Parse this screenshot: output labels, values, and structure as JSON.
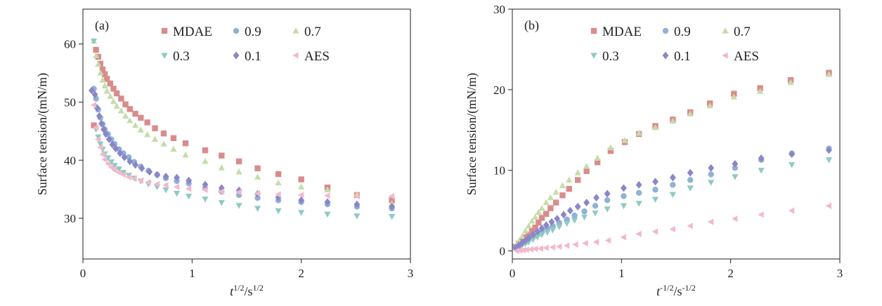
{
  "chart_data": [
    {
      "type": "scatter",
      "panel_label": "(a)",
      "xlabel": "t",
      "xlabel_sup": "1/2",
      "xlabel_rest": "/s",
      "xlabel_rest_sup": "1/2",
      "ylabel": "Surface tension/(mN/m)",
      "xlim": [
        0,
        3
      ],
      "ylim": [
        23,
        66
      ],
      "xticks": [
        0,
        1,
        2,
        3
      ],
      "yticks": [
        30,
        40,
        50,
        60
      ],
      "xtick_labels": [
        "0",
        "1",
        "2",
        "3"
      ],
      "ytick_labels": [
        "30",
        "40",
        "50",
        "60"
      ],
      "grid": false,
      "legend_position": "top, inside, 3 columns",
      "series": [
        {
          "name": "MDAE",
          "marker": "square",
          "color": "#d98c8c",
          "x": [
            0.1,
            0.12,
            0.14,
            0.16,
            0.18,
            0.2,
            0.22,
            0.25,
            0.28,
            0.31,
            0.35,
            0.39,
            0.43,
            0.48,
            0.53,
            0.59,
            0.66,
            0.74,
            0.83,
            0.94,
            1.12,
            1.27,
            1.43,
            1.6,
            1.79,
            2.0,
            2.24,
            2.51,
            2.83
          ],
          "y": [
            46.0,
            59.0,
            57.8,
            56.6,
            55.6,
            54.8,
            54.0,
            53.2,
            52.3,
            51.5,
            50.6,
            49.6,
            48.8,
            48.0,
            47.3,
            46.5,
            45.5,
            44.6,
            43.8,
            42.9,
            41.7,
            40.8,
            39.8,
            38.6,
            37.6,
            36.7,
            35.3,
            34.0,
            33.1
          ]
        },
        {
          "name": "0.9",
          "marker": "circle",
          "color": "#8fb2d6",
          "x": [
            0.1,
            0.12,
            0.14,
            0.16,
            0.18,
            0.2,
            0.23,
            0.26,
            0.29,
            0.33,
            0.37,
            0.42,
            0.47,
            0.53,
            0.6,
            0.68,
            0.76,
            0.86,
            0.97,
            1.12,
            1.27,
            1.43,
            1.6,
            1.79,
            2.0,
            2.24,
            2.51,
            2.83
          ],
          "y": [
            52.3,
            50.6,
            48.7,
            47.3,
            46.2,
            45.3,
            44.5,
            43.6,
            42.8,
            41.9,
            41.2,
            40.5,
            39.7,
            38.9,
            38.2,
            37.5,
            36.9,
            36.4,
            36.0,
            35.2,
            34.6,
            34.0,
            33.5,
            33.1,
            32.8,
            32.4,
            32.0,
            31.7
          ]
        },
        {
          "name": "0.7",
          "marker": "triangle-up",
          "color": "#c6dcaa",
          "x": [
            0.1,
            0.12,
            0.14,
            0.16,
            0.18,
            0.2,
            0.22,
            0.25,
            0.28,
            0.31,
            0.35,
            0.39,
            0.43,
            0.48,
            0.53,
            0.59,
            0.66,
            0.74,
            0.83,
            0.94,
            1.12,
            1.27,
            1.43,
            1.6,
            1.79,
            2.0,
            2.24,
            2.51,
            2.83
          ],
          "y": [
            60.5,
            58.0,
            56.5,
            55.0,
            53.8,
            52.8,
            51.9,
            51.0,
            50.1,
            49.3,
            48.5,
            47.6,
            46.8,
            46.0,
            45.2,
            44.4,
            43.6,
            42.8,
            41.9,
            40.9,
            39.8,
            38.7,
            38.0,
            37.1,
            36.1,
            35.4,
            34.9,
            34.1,
            32.5
          ]
        },
        {
          "name": "0.3",
          "marker": "triangle-down",
          "color": "#8ecac4",
          "x": [
            0.1,
            0.12,
            0.14,
            0.16,
            0.18,
            0.2,
            0.23,
            0.26,
            0.29,
            0.33,
            0.37,
            0.42,
            0.47,
            0.53,
            0.6,
            0.68,
            0.76,
            0.86,
            0.97,
            1.12,
            1.27,
            1.43,
            1.6,
            1.79,
            2.0,
            2.24,
            2.51,
            2.83
          ],
          "y": [
            60.5,
            45.3,
            44.0,
            42.8,
            41.9,
            41.1,
            40.4,
            39.7,
            39.1,
            38.5,
            37.9,
            37.4,
            36.9,
            36.4,
            35.9,
            35.4,
            34.9,
            34.3,
            33.8,
            33.3,
            32.7,
            32.2,
            31.7,
            31.3,
            31.0,
            30.7,
            30.4,
            30.3
          ]
        },
        {
          "name": "0.1",
          "marker": "diamond",
          "color": "#8a86c8",
          "x": [
            0.08,
            0.11,
            0.13,
            0.15,
            0.17,
            0.19,
            0.21,
            0.24,
            0.27,
            0.3,
            0.34,
            0.38,
            0.43,
            0.48,
            0.54,
            0.61,
            0.68,
            0.76,
            0.86,
            0.97,
            1.12,
            1.27,
            1.43,
            1.6,
            1.79,
            2.0,
            2.24,
            2.51,
            2.83
          ],
          "y": [
            52.0,
            51.3,
            49.0,
            47.6,
            46.3,
            45.3,
            44.5,
            43.6,
            42.7,
            42.0,
            41.2,
            40.5,
            39.8,
            39.2,
            38.6,
            38.0,
            37.5,
            37.2,
            37.0,
            36.5,
            35.8,
            35.2,
            34.8,
            34.2,
            33.6,
            33.1,
            32.8,
            32.4,
            32.0
          ]
        },
        {
          "name": "AES",
          "marker": "triangle-left",
          "color": "#f2b8cc",
          "x": [
            0.1,
            0.12,
            0.14,
            0.16,
            0.18,
            0.2,
            0.23,
            0.26,
            0.29,
            0.33,
            0.37,
            0.42,
            0.47,
            0.53,
            0.6,
            0.68,
            0.76,
            0.86,
            0.97,
            1.12,
            1.27,
            1.43,
            1.6,
            1.79,
            2.0,
            2.24,
            2.51,
            2.83
          ],
          "y": [
            49.5,
            45.6,
            43.6,
            42.2,
            41.0,
            40.1,
            39.4,
            38.8,
            38.3,
            37.9,
            37.5,
            37.1,
            36.8,
            36.5,
            36.2,
            35.9,
            35.7,
            35.4,
            35.1,
            34.9,
            34.6,
            34.5,
            34.3,
            34.1,
            34.0,
            33.9,
            33.8,
            33.8
          ]
        }
      ]
    },
    {
      "type": "scatter",
      "panel_label": "(b)",
      "xlabel": "t",
      "xlabel_sup": "-1/2",
      "xlabel_rest": "/s",
      "xlabel_rest_sup": "-1/2",
      "ylabel": "Surface tension/(mN/m)",
      "xlim": [
        0,
        3
      ],
      "ylim": [
        -1,
        30
      ],
      "xticks": [
        0,
        1,
        2,
        3
      ],
      "yticks": [
        0,
        10,
        20,
        30
      ],
      "xtick_labels": [
        "0",
        "1",
        "2",
        "3"
      ],
      "ytick_labels": [
        "0",
        "10",
        "20",
        "30"
      ],
      "grid": false,
      "legend_position": "top, inside, 3 columns",
      "series": [
        {
          "name": "MDAE",
          "marker": "square",
          "color": "#d98c8c",
          "x": [
            0.03,
            0.06,
            0.09,
            0.12,
            0.15,
            0.18,
            0.21,
            0.24,
            0.27,
            0.31,
            0.35,
            0.4,
            0.46,
            0.52,
            0.6,
            0.68,
            0.78,
            0.9,
            1.03,
            1.16,
            1.31,
            1.47,
            1.63,
            1.81,
            2.03,
            2.27,
            2.55,
            2.9
          ],
          "y": [
            0.5,
            0.9,
            1.3,
            1.7,
            2.0,
            2.5,
            2.9,
            3.5,
            4.1,
            4.6,
            5.3,
            6.0,
            6.9,
            7.7,
            8.8,
            9.9,
            11.0,
            12.4,
            13.5,
            14.5,
            15.5,
            16.3,
            17.2,
            18.3,
            19.5,
            20.2,
            21.2,
            22.1
          ]
        },
        {
          "name": "0.9",
          "marker": "circle",
          "color": "#8fb2d6",
          "x": [
            0.03,
            0.06,
            0.09,
            0.12,
            0.15,
            0.19,
            0.23,
            0.27,
            0.32,
            0.37,
            0.43,
            0.5,
            0.57,
            0.66,
            0.76,
            0.87,
            1.02,
            1.16,
            1.31,
            1.47,
            1.63,
            1.82,
            2.04,
            2.28,
            2.56,
            2.9
          ],
          "y": [
            0.4,
            0.6,
            0.9,
            1.1,
            1.4,
            1.7,
            2.0,
            2.4,
            2.8,
            3.1,
            3.5,
            3.9,
            4.4,
            4.9,
            5.6,
            6.3,
            6.8,
            7.2,
            7.6,
            8.2,
            8.8,
            9.5,
            10.3,
            11.3,
            12.1,
            12.7
          ]
        },
        {
          "name": "0.7",
          "marker": "triangle-up",
          "color": "#c6dcaa",
          "x": [
            0.03,
            0.06,
            0.09,
            0.12,
            0.15,
            0.18,
            0.21,
            0.24,
            0.27,
            0.31,
            0.35,
            0.4,
            0.46,
            0.52,
            0.6,
            0.68,
            0.78,
            0.9,
            1.03,
            1.16,
            1.31,
            1.47,
            1.63,
            1.81,
            2.03,
            2.27,
            2.55,
            2.9
          ],
          "y": [
            0.6,
            1.2,
            1.8,
            2.5,
            3.1,
            3.7,
            4.2,
            4.8,
            5.3,
            6.0,
            6.6,
            7.3,
            8.1,
            8.8,
            9.7,
            10.5,
            11.5,
            12.8,
            13.7,
            14.6,
            15.3,
            16.1,
            17.0,
            18.0,
            19.1,
            19.8,
            20.9,
            21.9
          ]
        },
        {
          "name": "0.3",
          "marker": "triangle-down",
          "color": "#8ecac4",
          "x": [
            0.03,
            0.06,
            0.09,
            0.12,
            0.15,
            0.19,
            0.23,
            0.27,
            0.32,
            0.37,
            0.43,
            0.5,
            0.57,
            0.66,
            0.76,
            0.87,
            1.02,
            1.16,
            1.31,
            1.47,
            1.63,
            1.82,
            2.04,
            2.28,
            2.56,
            2.9
          ],
          "y": [
            0.3,
            0.5,
            0.7,
            0.9,
            1.1,
            1.4,
            1.7,
            2.0,
            2.3,
            2.6,
            3.0,
            3.4,
            3.8,
            4.2,
            4.7,
            5.2,
            5.6,
            5.9,
            6.4,
            7.0,
            7.8,
            8.5,
            9.2,
            10.0,
            10.7,
            11.3
          ]
        },
        {
          "name": "0.1",
          "marker": "diamond",
          "color": "#8a86c8",
          "x": [
            0.03,
            0.06,
            0.09,
            0.12,
            0.15,
            0.19,
            0.23,
            0.27,
            0.31,
            0.36,
            0.41,
            0.47,
            0.53,
            0.6,
            0.68,
            0.77,
            0.87,
            1.02,
            1.16,
            1.31,
            1.47,
            1.63,
            1.82,
            2.04,
            2.28,
            2.56,
            2.9
          ],
          "y": [
            0.4,
            0.7,
            1.0,
            1.3,
            1.6,
            2.0,
            2.4,
            2.8,
            3.2,
            3.6,
            4.0,
            4.5,
            5.0,
            5.5,
            6.0,
            6.6,
            7.1,
            7.8,
            8.2,
            8.6,
            9.1,
            9.7,
            10.3,
            10.8,
            11.5,
            12.0,
            12.5
          ]
        },
        {
          "name": "AES",
          "marker": "triangle-left",
          "color": "#f2b8cc",
          "x": [
            0.04,
            0.07,
            0.1,
            0.13,
            0.17,
            0.21,
            0.26,
            0.31,
            0.37,
            0.43,
            0.5,
            0.58,
            0.67,
            0.77,
            0.88,
            1.02,
            1.16,
            1.31,
            1.47,
            1.63,
            1.82,
            2.04,
            2.28,
            2.56,
            2.9
          ],
          "y": [
            0.0,
            0.05,
            0.1,
            0.15,
            0.2,
            0.25,
            0.3,
            0.38,
            0.45,
            0.55,
            0.65,
            0.8,
            0.95,
            1.1,
            1.3,
            1.7,
            2.1,
            2.4,
            2.7,
            3.1,
            3.6,
            4.0,
            4.5,
            5.0,
            5.6
          ]
        }
      ]
    }
  ]
}
